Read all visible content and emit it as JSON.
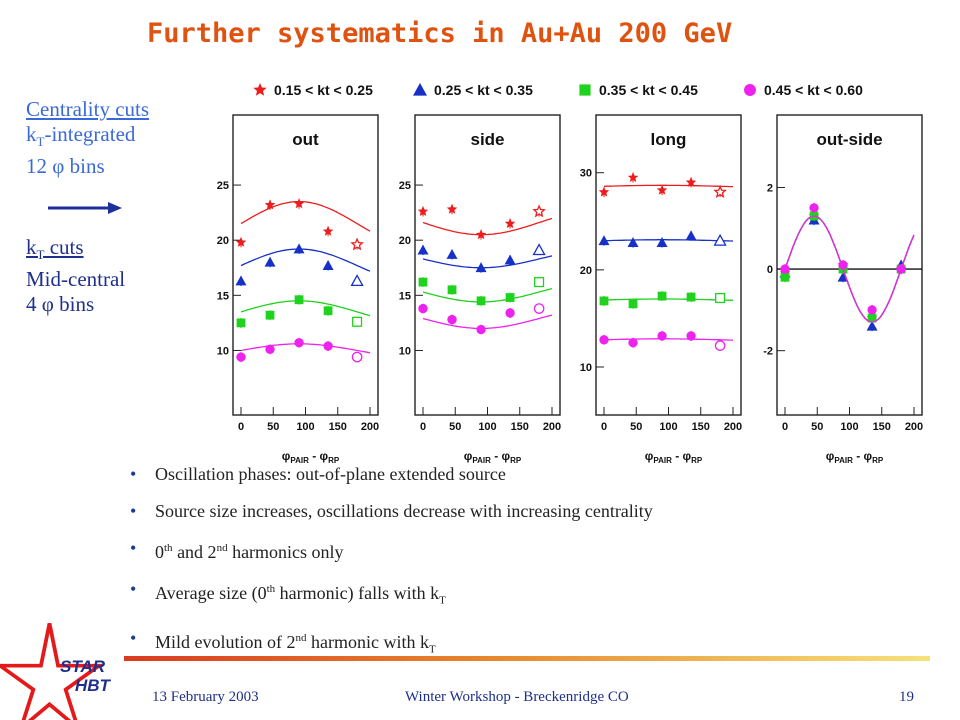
{
  "slide": {
    "title": "Further systematics in Au+Au 200 GeV",
    "left": {
      "line1": "Centrality cuts",
      "line2_pre": "k",
      "line2_sub": "T",
      "line2_post": "-integrated",
      "line3_pre": "12 ",
      "line3_phi": "φ",
      "line3_post": " bins",
      "line4_pre": "k",
      "line4_sub": "T",
      "line4_post": " cuts",
      "line5": "Mid-central",
      "line6_pre": "4 ",
      "line6_phi": "φ",
      "line6_post": " bins"
    },
    "bullets": {
      "b1": "Oscillation phases: out-of-plane extended source",
      "b2": "Source size increases, oscillations decrease with increasing centrality",
      "b3_a": "0",
      "b3_sup1": "th",
      "b3_b": " and 2",
      "b3_sup2": "nd",
      "b3_c": " harmonics only",
      "b4_a": "Average size (0",
      "b4_sup": "th",
      "b4_b": " harmonic) falls with k",
      "b4_sub": "T",
      "b5_a": "Mild evolution of 2",
      "b5_sup": "nd",
      "b5_b": " harmonic with k",
      "b5_sub": "T",
      "bullet_char": "•"
    },
    "footer": {
      "date": "13 February 2003",
      "center": "Winter Workshop - Breckenridge CO",
      "page": "19",
      "logo_line1": "STAR",
      "logo_line2": "HBT"
    }
  },
  "chart_data": {
    "type": "scatter",
    "legend": [
      {
        "label": "0.15 < kt < 0.25",
        "color": "#ee1c1c",
        "marker": "star"
      },
      {
        "label": "0.25 < kt < 0.35",
        "color": "#1730c8",
        "marker": "triangle"
      },
      {
        "label": "0.35 < kt < 0.45",
        "color": "#1ed21e",
        "marker": "square"
      },
      {
        "label": "0.45 < kt < 0.60",
        "color": "#ee22ee",
        "marker": "circle"
      }
    ],
    "xlabel_phi": "φ",
    "xlabel_sub1": "PAIR",
    "xlabel_mid": " - ",
    "xlabel_phi2": "φ",
    "xlabel_sub2": "RP",
    "xlim": [
      0,
      200
    ],
    "xticks": [
      0,
      50,
      100,
      150,
      200
    ],
    "x": [
      0,
      45,
      90,
      135,
      180
    ],
    "panels": [
      {
        "title": "out",
        "ylim": [
          8.5,
          27
        ],
        "yticks": [
          10,
          15,
          20,
          25
        ],
        "series": [
          {
            "values": [
              19.8,
              23.2,
              23.3,
              20.8,
              19.6
            ],
            "curve": [
              21.5,
              2.0,
              1
            ]
          },
          {
            "values": [
              16.3,
              18.0,
              19.2,
              17.7,
              16.3
            ],
            "curve": [
              17.7,
              1.5,
              1
            ]
          },
          {
            "values": [
              12.5,
              13.2,
              14.6,
              13.6,
              12.6
            ],
            "curve": [
              13.5,
              1.0,
              1
            ]
          },
          {
            "values": [
              9.4,
              10.1,
              10.7,
              10.4,
              9.4
            ],
            "curve": [
              10.0,
              0.6,
              1
            ]
          }
        ]
      },
      {
        "title": "side",
        "ylim": [
          8.5,
          27
        ],
        "yticks": [
          10,
          15,
          20,
          25
        ],
        "series": [
          {
            "values": [
              22.6,
              22.8,
              20.5,
              21.5,
              22.6
            ],
            "curve": [
              21.6,
              -1.1,
              1
            ]
          },
          {
            "values": [
              19.1,
              18.7,
              17.5,
              18.2,
              19.1
            ],
            "curve": [
              18.3,
              -0.8,
              1
            ]
          },
          {
            "values": [
              16.2,
              15.5,
              14.5,
              14.8,
              16.2
            ],
            "curve": [
              15.3,
              -0.9,
              1
            ]
          },
          {
            "values": [
              13.8,
              12.8,
              11.9,
              13.4,
              13.8
            ],
            "curve": [
              12.9,
              -0.9,
              1
            ]
          }
        ]
      },
      {
        "title": "long",
        "ylim": [
          10,
          31
        ],
        "yticks": [
          10,
          20,
          30
        ],
        "series": [
          {
            "values": [
              28.0,
              29.5,
              28.2,
              29.0,
              28.0
            ],
            "curve": [
              28.6,
              0.1,
              1
            ]
          },
          {
            "values": [
              23.0,
              22.8,
              22.8,
              23.5,
              23.0
            ],
            "curve": [
              23.0,
              0.1,
              1
            ]
          },
          {
            "values": [
              16.8,
              16.5,
              17.3,
              17.2,
              17.1
            ],
            "curve": [
              16.9,
              0.1,
              1
            ]
          },
          {
            "values": [
              12.8,
              12.5,
              13.2,
              13.2,
              12.2
            ],
            "curve": [
              12.8,
              0.1,
              1
            ]
          }
        ]
      },
      {
        "title": "out-side",
        "ylim": [
          -2.4,
          2.6
        ],
        "yticks": [
          -2,
          0,
          2
        ],
        "zero_line": true,
        "series": [
          {
            "values": [
              -0.1,
              1.3,
              0.1,
              -1.2,
              0.0
            ],
            "curve": [
              0,
              1.3,
              2
            ]
          },
          {
            "values": [
              -0.1,
              1.2,
              -0.2,
              -1.4,
              0.1
            ],
            "curve": [
              0,
              1.3,
              2
            ]
          },
          {
            "values": [
              -0.2,
              1.3,
              0.0,
              -1.2,
              0.0
            ],
            "curve": [
              0,
              1.3,
              2
            ]
          },
          {
            "values": [
              0.0,
              1.5,
              0.1,
              -1.0,
              0.0
            ],
            "curve": [
              0,
              1.3,
              2
            ]
          }
        ]
      }
    ]
  }
}
